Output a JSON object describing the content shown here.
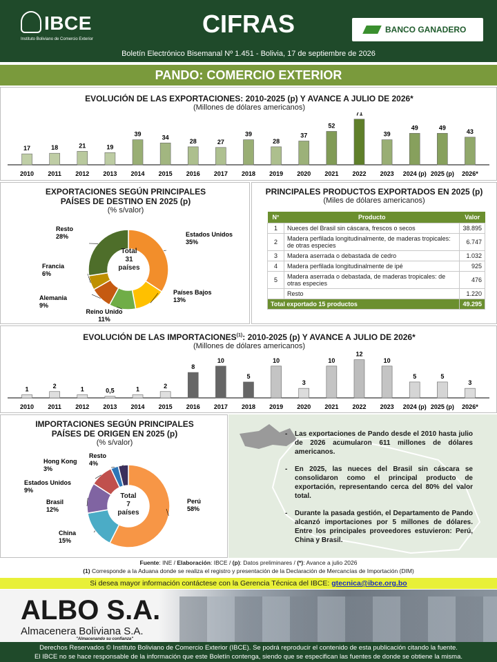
{
  "header": {
    "logo_name": "IBCE",
    "logo_sub": "Instituto Boliviano de Comercio Exterior",
    "title": "CIFRAS",
    "bank": "BANCO GANADERO",
    "bulletin": "Boletín Electrónico Bisemanal Nº 1.451 - Bolivia, 17 de septiembre de 2026"
  },
  "section_title": "PANDO: COMERCIO EXTERIOR",
  "exports_chart": {
    "title": "EVOLUCIÓN DE LAS EXPORTACIONES: 2010-2025 (p) Y AVANCE A JULIO DE 2026*",
    "subtitle": "(Millones de dólares americanos)"
  },
  "dest_chart": {
    "title_line1": "EXPORTACIONES SEGÚN PRINCIPALES",
    "title_line2": "PAÍSES DE DESTINO EN 2025 (p)",
    "subtitle": "(% s/valor)",
    "center_line1": "Total",
    "center_line2": "31",
    "center_line3": "países"
  },
  "products": {
    "title": "PRINCIPALES PRODUCTOS EXPORTADOS EN 2025 (p)",
    "subtitle": "(Miles de dólares americanos)",
    "headers": [
      "N°",
      "Producto",
      "Valor"
    ],
    "rows": [
      {
        "n": "1",
        "name": "Nueces del Brasil sin cáscara, frescos o secos",
        "value": "38.895"
      },
      {
        "n": "2",
        "name": "Madera perfilada longitudinalmente, de maderas tropicales: de otras especies",
        "value": "6.747"
      },
      {
        "n": "3",
        "name": "Madera aserrada o debastada de cedro",
        "value": "1.032"
      },
      {
        "n": "4",
        "name": "Madera perfilada longitudinalmente de ipé",
        "value": "925"
      },
      {
        "n": "5",
        "name": "Madera aserrada o debastada, de maderas tropicales: de otras especies",
        "value": "476"
      },
      {
        "n": "",
        "name": "Resto",
        "value": "1.220"
      }
    ],
    "total_label": "Total exportado 15 productos",
    "total_value": "49.295"
  },
  "imports_chart": {
    "title": "EVOLUCIÓN DE LAS IMPORTACIONES",
    "title_sup": "(1)",
    "title_rest": ": 2010-2025 (p) Y AVANCE A JULIO DE 2026*",
    "subtitle": "(Millones de dólares americanos)"
  },
  "origin_chart": {
    "title_line1": "IMPORTACIONES SEGÚN PRINCIPALES",
    "title_line2": "PAÍSES DE ORIGEN EN 2025 (p)",
    "subtitle": "(% s/valor)",
    "center_line1": "Total",
    "center_line2": "7",
    "center_line3": "países"
  },
  "notes": [
    "Las exportaciones de Pando desde el 2010 hasta julio de 2026 acumularon 611 millones de dólares americanos.",
    "En 2025, las nueces del Brasil sin cáscara se consolidaron como el principal producto de exportación, representando cerca del 80% del valor total.",
    "Durante la pasada gestión, el Departamento de Pando alcanzó importaciones por 5 millones de dólares. Entre los principales proveedores estuvieron: Perú, China y Brasil."
  ],
  "source": {
    "l1_a": "Fuente",
    "l1_b": ": INE / ",
    "l1_c": "Elaboración",
    "l1_d": ": IBCE / ",
    "l1_e": "(p)",
    "l1_f": ": Datos preliminares / ",
    "l1_g": "(*)",
    "l1_h": ": Avance a julio 2026",
    "l2_a": "(1)",
    "l2_b": " Corresponde a la Aduana donde se realiza el registro y presentación de la Declaración de Mercancías de Importación (DIM)"
  },
  "contact": {
    "text": "Si desea mayor información contáctese con la Gerencia Técnica del IBCE: ",
    "email": "gtecnica@ibce.org.bo"
  },
  "banner": {
    "brand": "ALBO S.A.",
    "company": "Almacenera Boliviana S.A.",
    "tagline": "\"Almacenando su confianza\""
  },
  "footer": {
    "line1": "Derechos Reservados © Instituto Boliviano de Comercio Exterior (IBCE). Se podrá reproducir el contenido de esta publicación citando la fuente.",
    "line2": "El IBCE no se hace responsable de la información que este Boletín contenga, siendo que se especifican las fuentes de donde se obtiene la misma."
  },
  "colors": {
    "dark_green": "#1f4a2a",
    "olive": "#7a9a3c",
    "export_bar_light": "#dfe8cf",
    "export_bar_dark": "#5f7f2a",
    "import_bar_dark": "#666666",
    "import_bar_light": "#e6e6e6"
  },
  "chart_data": [
    {
      "type": "bar",
      "title": "EVOLUCIÓN DE LAS EXPORTACIONES: 2010-2025 (p) Y AVANCE A JULIO DE 2026*",
      "subtitle": "(Millones de dólares americanos)",
      "categories": [
        "2010",
        "2011",
        "2012",
        "2013",
        "2014",
        "2015",
        "2016",
        "2017",
        "2018",
        "2019",
        "2020",
        "2021",
        "2022",
        "2023",
        "2024 (p)",
        "2025 (p)",
        "2026*"
      ],
      "values": [
        17,
        18,
        21,
        19,
        39,
        34,
        28,
        27,
        39,
        28,
        37,
        52,
        71,
        39,
        49,
        49,
        43
      ],
      "labels": [
        "17",
        "18",
        "21",
        "19",
        "39",
        "34",
        "28",
        "27",
        "39",
        "28",
        "37",
        "52",
        "71",
        "39",
        "49",
        "49",
        "43"
      ],
      "ylim": [
        0,
        75
      ]
    },
    {
      "type": "pie",
      "title": "EXPORTACIONES SEGÚN PRINCIPALES PAÍSES DE DESTINO EN 2025 (p)",
      "subtitle": "(% s/valor)",
      "slices": [
        {
          "label": "Estados Unidos",
          "value": 35,
          "text": "35%",
          "color": "#f28e2b"
        },
        {
          "label": "Países Bajos",
          "value": 13,
          "text": "13%",
          "color": "#ffc000"
        },
        {
          "label": "Reino Unido",
          "value": 11,
          "text": "11%",
          "color": "#70ad47"
        },
        {
          "label": "Alemania",
          "value": 9,
          "text": "9%",
          "color": "#c55a11"
        },
        {
          "label": "Francia",
          "value": 6,
          "text": "6%",
          "color": "#bf9000"
        },
        {
          "label": "Resto",
          "value": 28,
          "text": "28%",
          "color": "#4e6e2a"
        }
      ]
    },
    {
      "type": "bar",
      "title": "EVOLUCIÓN DE LAS IMPORTACIONES(1): 2010-2025 (p) Y AVANCE A JULIO DE 2026*",
      "subtitle": "(Millones de dólares americanos)",
      "categories": [
        "2010",
        "2011",
        "2012",
        "2013",
        "2014",
        "2015",
        "2016",
        "2017",
        "2018",
        "2019",
        "2020",
        "2021",
        "2022",
        "2023",
        "2024 (p)",
        "2025 (p)",
        "2026*"
      ],
      "values": [
        1,
        2,
        1,
        0.5,
        1,
        2,
        8,
        10,
        5,
        10,
        3,
        10,
        12,
        10,
        5,
        5,
        3
      ],
      "labels": [
        "1",
        "2",
        "1",
        "0,5",
        "1",
        "2",
        "8",
        "10",
        "5",
        "10",
        "3",
        "10",
        "12",
        "10",
        "5",
        "5",
        "3"
      ],
      "ylim": [
        0,
        13
      ]
    },
    {
      "type": "pie",
      "title": "IMPORTACIONES SEGÚN PRINCIPALES PAÍSES DE ORIGEN EN 2025 (p)",
      "subtitle": "(% s/valor)",
      "slices": [
        {
          "label": "Perú",
          "value": 58,
          "text": "58%",
          "color": "#f79646"
        },
        {
          "label": "China",
          "value": 15,
          "text": "15%",
          "color": "#4bacc6"
        },
        {
          "label": "Brasil",
          "value": 12,
          "text": "12%",
          "color": "#8064a2"
        },
        {
          "label": "Estados Unidos",
          "value": 9,
          "text": "9%",
          "color": "#c0504d"
        },
        {
          "label": "Hong Kong",
          "value": 3,
          "text": "3%",
          "color": "#2e75b6"
        },
        {
          "label": "Resto",
          "value": 4,
          "text": "4%",
          "color": "#3b2f5c"
        }
      ]
    }
  ]
}
